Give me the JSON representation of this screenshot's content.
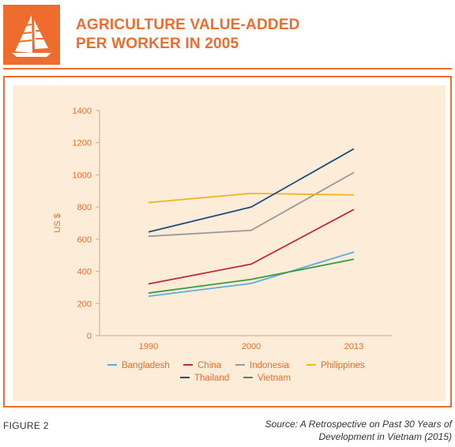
{
  "header": {
    "title_line1": "AGRICULTURE VALUE-ADDED",
    "title_line2": "PER WORKER IN 2005",
    "icon": "junk-boat-icon"
  },
  "footer": {
    "figure_label": "FIGURE 2",
    "source_line1": "Source: A Retrospective on Past 30 Years of",
    "source_line2": "Development in Vietnam (2015)"
  },
  "colors": {
    "accent": "#ee6c2d",
    "plot_bg": "#fdecd8"
  },
  "chart_data": {
    "type": "line",
    "title": "",
    "xlabel": "",
    "ylabel": "US $",
    "x": [
      "1990",
      "2000",
      "2013"
    ],
    "ylim": [
      0,
      1400
    ],
    "yticks": [
      0,
      200,
      400,
      600,
      800,
      1000,
      1200,
      1400
    ],
    "grid": false,
    "legend_position": "bottom",
    "series": [
      {
        "name": "Bangladesh",
        "color": "#5aaedf",
        "values": [
          245,
          325,
          520
        ]
      },
      {
        "name": "China",
        "color": "#c32a32",
        "values": [
          322,
          445,
          785
        ]
      },
      {
        "name": "Indonesia",
        "color": "#999999",
        "values": [
          618,
          655,
          1015
        ]
      },
      {
        "name": "Philippines",
        "color": "#f2b51d",
        "values": [
          828,
          885,
          875
        ]
      },
      {
        "name": "Thailand",
        "color": "#1d4e7e",
        "values": [
          645,
          800,
          1162
        ]
      },
      {
        "name": "Vietnam",
        "color": "#3a9b3c",
        "values": [
          265,
          350,
          475
        ]
      }
    ]
  }
}
